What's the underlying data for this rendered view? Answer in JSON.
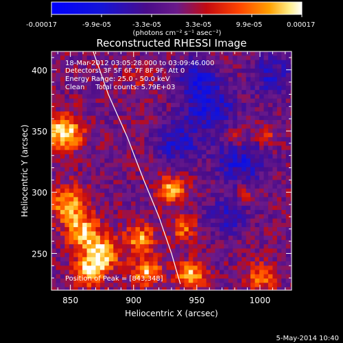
{
  "colorbar": {
    "tick_labels": [
      "-0.00017",
      "-9.9e-05",
      "-3.3e-05",
      "3.3e-05",
      "9.9e-05",
      "0.00017"
    ],
    "unit_label": "(photons cm⁻² s⁻¹ asec⁻²)",
    "range": [
      -0.00017,
      0.00017
    ]
  },
  "timestamp": "5-May-2014 10:40",
  "chart_data": {
    "type": "heatmap",
    "title": "Reconstructed RHESSI Image",
    "xlabel": "Heliocentric X (arcsec)",
    "ylabel": "Heliocentric Y (arcsec)",
    "xlim": [
      835,
      1025
    ],
    "ylim": [
      220,
      415
    ],
    "x_ticks": [
      850,
      900,
      950,
      1000
    ],
    "y_ticks": [
      250,
      300,
      350,
      400
    ],
    "annotations": [
      "18-Mar-2012 03:05:28.000 to 03:09:46.000",
      "Detectors: 3F 5F 6F 7F 8F 9F, Att 0",
      "Energy Range: 25.0 - 50.0 keV",
      "Clean     Total counts: 5.79E+03"
    ],
    "peak_label": "Position of Peak = [843,348]",
    "peak": [
      843,
      348
    ],
    "limb_curve": [
      [
        868,
        415
      ],
      [
        880,
        380
      ],
      [
        895,
        345
      ],
      [
        908,
        310
      ],
      [
        920,
        280
      ],
      [
        930,
        250
      ],
      [
        937,
        225
      ]
    ],
    "sources": [
      {
        "x": 845,
        "y": 348,
        "amp": 1.0,
        "sigma": 10
      },
      {
        "x": 848,
        "y": 290,
        "amp": 0.8,
        "sigma": 10
      },
      {
        "x": 860,
        "y": 268,
        "amp": 0.85,
        "sigma": 9
      },
      {
        "x": 875,
        "y": 250,
        "amp": 0.95,
        "sigma": 9
      },
      {
        "x": 865,
        "y": 235,
        "amp": 0.85,
        "sigma": 8
      },
      {
        "x": 905,
        "y": 262,
        "amp": 0.7,
        "sigma": 8
      },
      {
        "x": 910,
        "y": 235,
        "amp": 0.8,
        "sigma": 8
      },
      {
        "x": 930,
        "y": 302,
        "amp": 0.75,
        "sigma": 8
      },
      {
        "x": 945,
        "y": 232,
        "amp": 0.8,
        "sigma": 8
      },
      {
        "x": 940,
        "y": 270,
        "amp": 0.55,
        "sigma": 7
      },
      {
        "x": 1000,
        "y": 230,
        "amp": 0.6,
        "sigma": 8
      },
      {
        "x": 982,
        "y": 345,
        "amp": 0.45,
        "sigma": 6
      },
      {
        "x": 1005,
        "y": 345,
        "amp": 0.4,
        "sigma": 6
      },
      {
        "x": 990,
        "y": 300,
        "amp": 0.35,
        "sigma": 6
      },
      {
        "x": 905,
        "y": 395,
        "amp": 0.3,
        "sigma": 6
      }
    ],
    "negative_regions": [
      {
        "x": 960,
        "y": 370,
        "amp": 0.6,
        "sigma": 14
      },
      {
        "x": 985,
        "y": 325,
        "amp": 0.55,
        "sigma": 14
      },
      {
        "x": 935,
        "y": 340,
        "amp": 0.5,
        "sigma": 12
      },
      {
        "x": 1010,
        "y": 395,
        "amp": 0.45,
        "sigma": 12
      },
      {
        "x": 950,
        "y": 395,
        "amp": 0.5,
        "sigma": 10
      },
      {
        "x": 975,
        "y": 280,
        "amp": 0.4,
        "sigma": 12
      }
    ]
  }
}
